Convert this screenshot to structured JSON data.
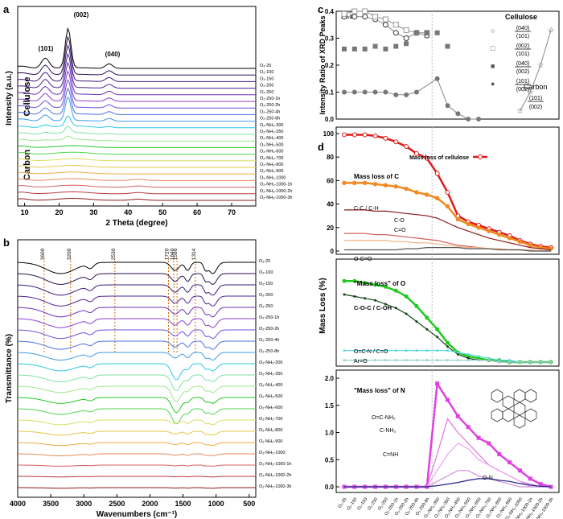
{
  "chart_data": [
    {
      "panel": "a",
      "type": "line",
      "xlabel": "2 Theta (degree)",
      "ylabel": "Intensity (a.u.)",
      "xlim": [
        8,
        77
      ],
      "xticks": [
        "10",
        "20",
        "30",
        "40",
        "50",
        "60",
        "70"
      ],
      "peak_labels": [
        "(101)",
        "(002)",
        "(040)"
      ],
      "region_labels": [
        "Cellulose",
        "Carbon"
      ],
      "series_labels": [
        "O2-25",
        "O2-100",
        "O2-150",
        "O2-200",
        "O2-250",
        "O2-250-1h",
        "O2-250-2h",
        "O2-250-4h",
        "O2-250-8h",
        "O2-NH3-300",
        "O2-NH3-350",
        "O2-NH3-400",
        "O2-NH3-500",
        "O2-NH3-600",
        "O2-NH3-700",
        "O2-NH3-800",
        "O2-NH3-900",
        "O2-NH3-1000",
        "O2-NH3-1000-1h",
        "O2-NH3-1000-2h",
        "O2-NH3-1000-3h"
      ],
      "series_colors": [
        "#000000",
        "#2b0f4e",
        "#3c1a78",
        "#4e2398",
        "#6a2fb8",
        "#8a3fd0",
        "#6b4fe0",
        "#4d6fe0",
        "#3f9ae6",
        "#29c6e6",
        "#7fe0a6",
        "#9ce88a",
        "#22c822",
        "#4ed64e",
        "#d7e060",
        "#e8c84a",
        "#f0a840",
        "#e88a5a",
        "#d86060",
        "#b83838",
        "#8a1a1a"
      ]
    },
    {
      "panel": "b",
      "type": "line",
      "xlabel": "Wavenumbers (cm⁻¹)",
      "ylabel": "Transmittance (%)",
      "xlim": [
        4000,
        400
      ],
      "xticks": [
        "4000",
        "3500",
        "3000",
        "2500",
        "2000",
        "1500",
        "1000",
        "500"
      ],
      "band_labels": [
        "3600",
        "3200",
        "2530",
        "1720",
        "1640",
        "1590",
        "1314"
      ],
      "series_labels": [
        "O2-25",
        "O2-100",
        "O2-150",
        "O2-200",
        "O2-250",
        "O2-250-1h",
        "O2-250-2h",
        "O2-250-4h",
        "O2-250-8h",
        "O2-NH3-300",
        "O2-NH3-350",
        "O2-NH3-400",
        "O2-NH3-500",
        "O2-NH3-600",
        "O2-NH3-700",
        "O2-NH3-800",
        "O2-NH3-900",
        "O2-NH3-1000",
        "O2-NH3-1000-1h",
        "O2-NH3-1000-2h",
        "O2-NH3-1000-3h"
      ]
    },
    {
      "panel": "c",
      "type": "scatter",
      "ylabel": "Intensity Ratio of XRD Peaks",
      "ylim": [
        0,
        0.4
      ],
      "yticks": [
        "0.0",
        "0.1",
        "0.2",
        "0.3",
        "0.4"
      ],
      "scale_note": "X0.1",
      "legend_title": "Cellulose",
      "legend_entries": [
        {
          "num": "(040)",
          "den": "(101)"
        },
        {
          "num": "(002)",
          "den": "(101)"
        },
        {
          "num": "(040)",
          "den": "(002)"
        },
        {
          "num": "(101)",
          "den": "(002)"
        }
      ],
      "carbon_label": "Carbon",
      "carbon_num": "(101)",
      "carbon_den": "(002)",
      "categories": [
        "O2-25",
        "O2-100",
        "O2-150",
        "O2-200",
        "O2-250",
        "O2-250-1h",
        "O2-250-2h",
        "O2-250-4h",
        "O2-250-8h",
        "O2-NH3-300",
        "O2-NH3-350",
        "O2-NH3-400",
        "O2-NH3-500",
        "O2-NH3-600",
        "O2-NH3-700",
        "O2-NH3-800",
        "O2-NH3-900",
        "O2-NH3-1000",
        "O2-NH3-1000-1h",
        "O2-NH3-1000-2h",
        "O2-NH3-1000-3h"
      ],
      "series": [
        {
          "marker": "open-circle",
          "values": [
            0.38,
            0.38,
            0.38,
            0.37,
            0.35,
            0.32,
            0.3,
            0.32,
            0.31,
            null,
            null,
            null,
            null,
            null,
            null,
            null,
            null,
            null,
            null,
            null,
            null
          ]
        },
        {
          "marker": "open-square",
          "values": [
            0.39,
            0.4,
            0.4,
            0.38,
            0.37,
            0.35,
            0.33,
            0.32,
            0.32,
            null,
            null,
            null,
            null,
            null,
            null,
            null,
            null,
            null,
            null,
            null,
            null
          ]
        },
        {
          "marker": "filled-square",
          "values": [
            0.26,
            0.26,
            0.26,
            0.27,
            0.26,
            0.27,
            0.28,
            0.32,
            0.32,
            0.32,
            0.27,
            null,
            null,
            null,
            null,
            null,
            null,
            null,
            null,
            null,
            null
          ]
        },
        {
          "marker": "filled-circle",
          "values": [
            0.1,
            0.1,
            0.1,
            0.1,
            0.1,
            0.09,
            0.09,
            0.1,
            null,
            0.15,
            0.05,
            0.02,
            0.0,
            0.0,
            null,
            null,
            null,
            null,
            null,
            null,
            null
          ]
        },
        {
          "marker": "open-star",
          "values": [
            null,
            null,
            null,
            null,
            null,
            null,
            null,
            null,
            null,
            null,
            null,
            null,
            null,
            null,
            null,
            null,
            null,
            0.03,
            0.1,
            0.2,
            0.33
          ]
        }
      ]
    },
    {
      "panel": "d",
      "type": "line",
      "ylabel": "Mass Loss (%)",
      "categories": [
        "O2-25",
        "O2-100",
        "O2-150",
        "O2-200",
        "O2-250",
        "O2-250-1h",
        "O2-250-2h",
        "O2-250-4h",
        "O2-250-8h",
        "O2-NH3-300",
        "O2-NH3-350",
        "O2-NH3-400",
        "O2-NH3-500",
        "O2-NH3-600",
        "O2-NH3-700",
        "O2-NH3-800",
        "O2-NH3-900",
        "O2-NH3-1000",
        "O2-NH3-1000-1h",
        "O2-NH3-1000-2h",
        "O2-NH3-1000-3h"
      ],
      "tick_labels": [
        "O₂-25",
        "O₂-100",
        "O₂-150",
        "O₂-200",
        "O₂-250",
        "O₂-250-1h",
        "O₂-250-2h",
        "O₂-250-4h",
        "O₂-250-8h",
        "O₂-NH₃-300",
        "O₂-NH₃-350",
        "O₂-NH₃-400",
        "O₂-NH₃-500",
        "O₂-NH₃-600",
        "O₂-NH₃-700",
        "O₂-NH₃-800",
        "O₂-NH₃-900",
        "O₂-NH₃-1000",
        "O₂-NH₃-1000-1h",
        "O₂-NH₃-1000-2h",
        "O₂-NH₃-1000-3h"
      ],
      "subpanels": [
        {
          "ylim": [
            0,
            100
          ],
          "yticks": [
            "0",
            "20",
            "40",
            "60",
            "80",
            "100"
          ],
          "legend": "Mass loss of cellulose",
          "labels": [
            "Mass loss of C",
            "C-C / C-H",
            "C-O",
            "C=O",
            "O-C=O"
          ],
          "series": [
            {
              "name": "Mass loss of cellulose",
              "color": "#e01818",
              "values": [
                99,
                99,
                99,
                98,
                96,
                93,
                89,
                83,
                79,
                66,
                50,
                30,
                25,
                22,
                19,
                16,
                13,
                9,
                6,
                4,
                3
              ]
            },
            {
              "name": "Mass loss of C",
              "color": "#f08a20",
              "values": [
                58,
                58,
                58,
                57,
                56,
                55,
                53,
                50,
                48,
                45,
                38,
                27,
                23,
                20,
                17,
                14,
                11,
                8,
                5,
                3,
                2
              ]
            },
            {
              "name": "C-C / C-H",
              "color": "#8a1a1a",
              "values": [
                35,
                35,
                35,
                34,
                34,
                33,
                32,
                31,
                30,
                28,
                24,
                20,
                17,
                14,
                11,
                9,
                7,
                5,
                3,
                2,
                1
              ]
            },
            {
              "name": "C-O",
              "color": "#d86060",
              "values": [
                15,
                15,
                15,
                14,
                14,
                13,
                12,
                11,
                10,
                9,
                7,
                5,
                4,
                3,
                2,
                2,
                1,
                1,
                1,
                0,
                0
              ]
            },
            {
              "name": "C=O",
              "color": "#f0b080",
              "values": [
                9,
                9,
                9,
                9,
                9,
                8,
                8,
                7,
                7,
                6,
                5,
                4,
                3,
                3,
                2,
                2,
                1,
                1,
                1,
                0,
                0
              ]
            },
            {
              "name": "O-C=O",
              "color": "#555555",
              "values": [
                1,
                1,
                1,
                1,
                1,
                1,
                2,
                2,
                3,
                3,
                3,
                3,
                2,
                2,
                2,
                1,
                1,
                1,
                0,
                0,
                0
              ]
            }
          ]
        },
        {
          "labels": [
            "\"Mass loss\" of O",
            "C-O-C / C-OH",
            "O=C-N / C=O",
            "Ar=O"
          ],
          "series": [
            {
              "name": "\"Mass loss\" of O",
              "color": "#22c822",
              "values": [
                42,
                42,
                41,
                40,
                39,
                37,
                34,
                29,
                23,
                17,
                10,
                5,
                3,
                2,
                1,
                1,
                0,
                0,
                0,
                0,
                0
              ]
            },
            {
              "name": "C-O-C / C-OH",
              "color": "#114411",
              "values": [
                35,
                34,
                33,
                32,
                30,
                28,
                25,
                21,
                17,
                13,
                8,
                4,
                2,
                1,
                1,
                0,
                0,
                0,
                0,
                0,
                0
              ]
            },
            {
              "name": "O=C-N / C=O",
              "color": "#5fd8e0",
              "values": [
                6,
                6,
                6,
                6,
                6,
                6,
                6,
                6,
                6,
                6,
                6,
                5,
                4,
                3,
                2,
                1,
                1,
                0,
                0,
                0,
                0
              ]
            },
            {
              "name": "Ar=O",
              "color": "#9ad0d0",
              "values": [
                1,
                1,
                1,
                1,
                1,
                1,
                1,
                1,
                1,
                1,
                1,
                1,
                1,
                1,
                1,
                0,
                0,
                0,
                0,
                0,
                0
              ]
            }
          ]
        },
        {
          "yticks": [
            "0.0",
            "0.5",
            "1.0",
            "1.5",
            "2.0"
          ],
          "ylim": [
            0,
            2
          ],
          "labels": [
            "\"Mass loss\" of N",
            "O=C-NH₂",
            "C-NH₂",
            "C=NH",
            "O-N"
          ],
          "series": [
            {
              "name": "\"Mass loss\" of N",
              "color": "#e040e0",
              "values": [
                0,
                0,
                0,
                0,
                0,
                0,
                0,
                0,
                0,
                1.9,
                1.6,
                1.3,
                1.1,
                0.9,
                0.8,
                0.6,
                0.45,
                0.3,
                0.15,
                0.05,
                0.0
              ]
            },
            {
              "name": "O=C-NH₂",
              "color": "#e070e0",
              "values": [
                0,
                0,
                0,
                0,
                0,
                0,
                0,
                0,
                0,
                0.6,
                1.25,
                1.0,
                0.8,
                0.6,
                0.4,
                0.3,
                0.2,
                0.1,
                0.05,
                0,
                0
              ]
            },
            {
              "name": "C-NH₂",
              "color": "#f0a0f0",
              "values": [
                0,
                0,
                0,
                0,
                0,
                0,
                0,
                0,
                0,
                0.3,
                0.6,
                0.8,
                0.7,
                0.5,
                0.4,
                0.3,
                0.2,
                0.1,
                0,
                0,
                0
              ]
            },
            {
              "name": "C=NH",
              "color": "#d090e0",
              "values": [
                0,
                0,
                0,
                0,
                0,
                0,
                0,
                0,
                0,
                0.1,
                0.2,
                0.3,
                0.3,
                0.2,
                0.15,
                0.1,
                0.05,
                0,
                0,
                0,
                0
              ]
            },
            {
              "name": "O-N",
              "color": "#222288",
              "values": [
                0,
                0,
                0,
                0,
                0,
                0,
                0,
                0,
                0,
                0.02,
                0.05,
                0.08,
                0.12,
                0.15,
                0.15,
                0.12,
                0.1,
                0.06,
                0.03,
                0.01,
                0
              ]
            }
          ]
        }
      ]
    }
  ],
  "panel_letters": [
    "a",
    "b",
    "c",
    "d"
  ]
}
